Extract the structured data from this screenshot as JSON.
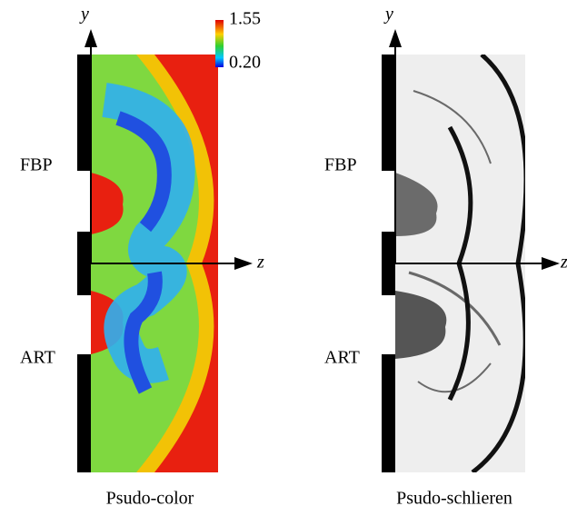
{
  "panels": [
    {
      "y_label": "y",
      "z_label": "z",
      "rows": [
        "FBP",
        "ART"
      ],
      "caption": "Psudo-color",
      "colorbar": {
        "max": "1.55",
        "min": "0.20"
      }
    },
    {
      "y_label": "y",
      "z_label": "z",
      "rows": [
        "FBP",
        "ART"
      ],
      "caption": "Psudo-schlieren"
    }
  ]
}
